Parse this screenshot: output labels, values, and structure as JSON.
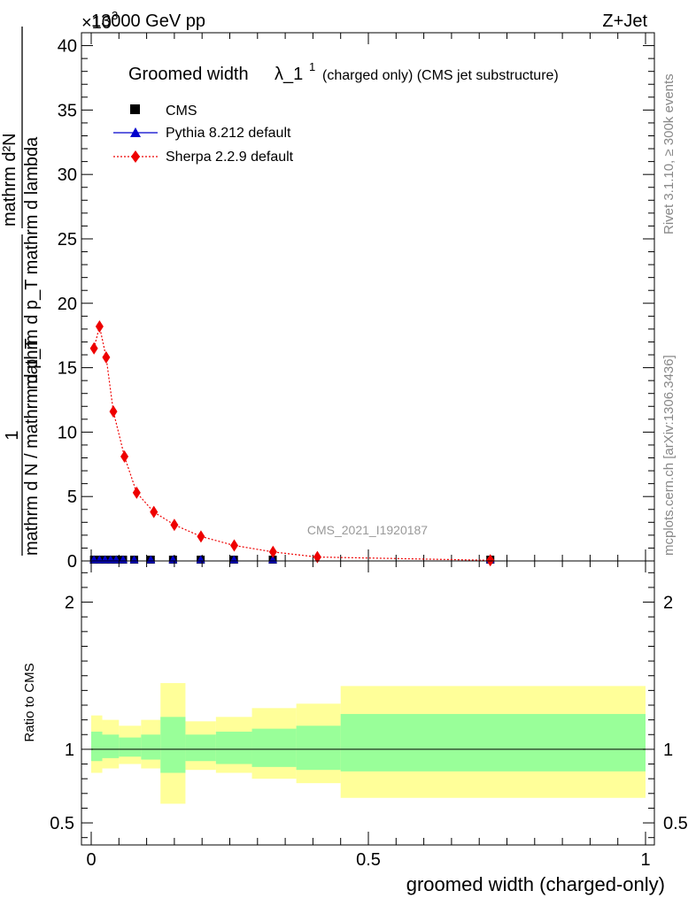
{
  "header": {
    "exponent_label": "×10",
    "exponent_power": "3",
    "energy_label": "13000 GeV pp",
    "process_label": "Z+Jet"
  },
  "side_labels": {
    "rivet": "Rivet 3.1.10, ≥ 300k events",
    "mcplots": "mcplots.cern.ch [arXiv:1306.3436]"
  },
  "watermark": "CMS_2021_I1920187",
  "colors": {
    "cms": "#000000",
    "pythia": "#0000cc",
    "sherpa": "#ee0000",
    "band_inner": "#99ff99",
    "band_outer": "#ffff99"
  },
  "main_plot": {
    "title": "Groomed width λ_1^1 (charged only) (CMS jet substructure)",
    "title_main": "Groomed width",
    "title_lambda": "λ_1",
    "title_sup": "1",
    "title_small": "(charged only) (CMS jet substructure)",
    "ylabel_numerator": "1",
    "ylabel_num_inner": "mathrm d²N",
    "ylabel_den_inner": "mathrm d p_T mathrm d lambda",
    "ylabel_den_outer": "mathrm d N / mathrm d p_T",
    "legend": {
      "cms": "CMS",
      "pythia": "Pythia 8.212 default",
      "sherpa": "Sherpa 2.2.9 default"
    }
  },
  "ratio_plot": {
    "ylabel": "Ratio to CMS"
  },
  "xlabel": "groomed width (charged-only)",
  "chart_data": [
    {
      "type": "scatter",
      "panel": "main",
      "title": "Groomed width λ_1^1 (charged only) (CMS jet substructure)",
      "xlabel": "groomed width (charged-only)",
      "ylabel": "1/(dN/dp_T) d²N/(dp_T dλ)",
      "y_scale_label": "×10^3",
      "xlim": [
        0,
        1
      ],
      "ylim": [
        0,
        41
      ],
      "x_ticks": [
        "0",
        "0.5",
        "1"
      ],
      "y_ticks": [
        "0",
        "5",
        "10",
        "15",
        "20",
        "25",
        "30",
        "35",
        "40"
      ],
      "series": [
        {
          "name": "CMS",
          "marker": "square",
          "x": [
            0.005,
            0.015,
            0.025,
            0.035,
            0.045,
            0.0575,
            0.0775,
            0.1075,
            0.1475,
            0.1975,
            0.2575,
            0.3275,
            0.72
          ],
          "y": [
            0.1,
            0.1,
            0.1,
            0.1,
            0.1,
            0.1,
            0.1,
            0.1,
            0.1,
            0.1,
            0.1,
            0.1,
            0.1
          ]
        },
        {
          "name": "Pythia 8.212 default",
          "marker": "triangle",
          "x": [
            0.005,
            0.015,
            0.025,
            0.035,
            0.045,
            0.0575,
            0.0775,
            0.1075,
            0.1475,
            0.1975,
            0.2575,
            0.3275,
            0.72
          ],
          "y": [
            0.1,
            0.1,
            0.1,
            0.1,
            0.1,
            0.1,
            0.1,
            0.1,
            0.1,
            0.1,
            0.1,
            0.1,
            0.1
          ]
        },
        {
          "name": "Sherpa 2.2.9 default",
          "marker": "diamond",
          "x": [
            0.005,
            0.015,
            0.027,
            0.04,
            0.06,
            0.082,
            0.113,
            0.15,
            0.198,
            0.258,
            0.328,
            0.408,
            0.72
          ],
          "y": [
            16.5,
            18.2,
            15.8,
            11.6,
            8.1,
            5.3,
            3.8,
            2.8,
            1.9,
            1.2,
            0.7,
            0.3,
            0.05
          ]
        }
      ]
    },
    {
      "type": "area",
      "panel": "ratio",
      "ylabel": "Ratio to CMS",
      "xlim": [
        0,
        1
      ],
      "ylim": [
        0.35,
        2.28
      ],
      "y_ticks": [
        "0.5",
        "1",
        "2"
      ],
      "reference_line": 1,
      "bins": [
        {
          "x0": 0.0,
          "x1": 0.02,
          "inner": [
            0.92,
            1.12
          ],
          "outer": [
            0.84,
            1.23
          ]
        },
        {
          "x0": 0.02,
          "x1": 0.05,
          "inner": [
            0.94,
            1.1
          ],
          "outer": [
            0.87,
            1.2
          ]
        },
        {
          "x0": 0.05,
          "x1": 0.09,
          "inner": [
            0.95,
            1.08
          ],
          "outer": [
            0.9,
            1.16
          ]
        },
        {
          "x0": 0.09,
          "x1": 0.125,
          "inner": [
            0.93,
            1.1
          ],
          "outer": [
            0.87,
            1.2
          ]
        },
        {
          "x0": 0.125,
          "x1": 0.17,
          "inner": [
            0.84,
            1.22
          ],
          "outer": [
            0.63,
            1.45
          ]
        },
        {
          "x0": 0.17,
          "x1": 0.225,
          "inner": [
            0.92,
            1.1
          ],
          "outer": [
            0.86,
            1.19
          ]
        },
        {
          "x0": 0.225,
          "x1": 0.29,
          "inner": [
            0.9,
            1.12
          ],
          "outer": [
            0.84,
            1.22
          ]
        },
        {
          "x0": 0.29,
          "x1": 0.37,
          "inner": [
            0.88,
            1.14
          ],
          "outer": [
            0.8,
            1.28
          ]
        },
        {
          "x0": 0.37,
          "x1": 0.45,
          "inner": [
            0.86,
            1.16
          ],
          "outer": [
            0.77,
            1.31
          ]
        },
        {
          "x0": 0.45,
          "x1": 1.0,
          "inner": [
            0.85,
            1.24
          ],
          "outer": [
            0.67,
            1.43
          ]
        }
      ]
    }
  ]
}
